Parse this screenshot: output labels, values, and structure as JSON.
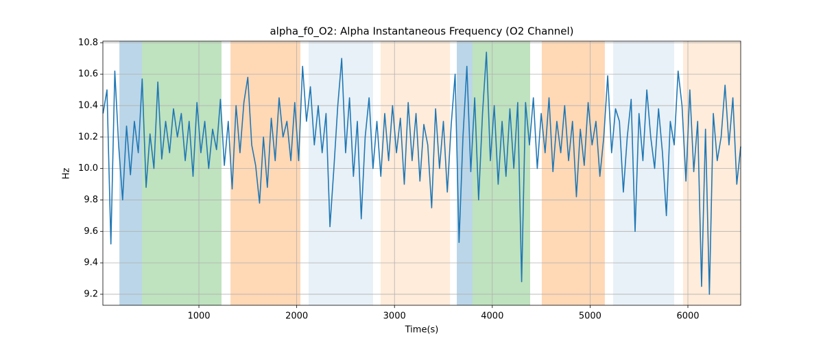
{
  "chart_data": {
    "type": "line",
    "title": "alpha_f0_O2: Alpha Instantaneous Frequency (O2 Channel)",
    "xlabel": "Time(s)",
    "ylabel": "Hz",
    "color": "#1f77b4",
    "xlim": [
      18,
      6540
    ],
    "ylim": [
      9.13,
      10.81
    ],
    "xticks": [
      1000,
      2000,
      3000,
      4000,
      5000,
      6000
    ],
    "yticks": [
      9.2,
      9.4,
      9.6,
      9.8,
      {
        "value": 10,
        "label": "10.0"
      },
      10.2,
      10.4,
      10.6,
      10.8
    ],
    "grid": true,
    "spans": [
      {
        "start": 187,
        "end": 418,
        "color": "#1f77b4",
        "alpha": 0.3
      },
      {
        "start": 418,
        "end": 1231,
        "color": "#2ca02c",
        "alpha": 0.3
      },
      {
        "start": 1323,
        "end": 2038,
        "color": "#ff7f0e",
        "alpha": 0.3
      },
      {
        "start": 2122,
        "end": 2781,
        "color": "#1f77b4",
        "alpha": 0.1
      },
      {
        "start": 2858,
        "end": 3567,
        "color": "#ff7f0e",
        "alpha": 0.15
      },
      {
        "start": 3637,
        "end": 3798,
        "color": "#1f77b4",
        "alpha": 0.3
      },
      {
        "start": 3798,
        "end": 4387,
        "color": "#2ca02c",
        "alpha": 0.3
      },
      {
        "start": 4506,
        "end": 5151,
        "color": "#ff7f0e",
        "alpha": 0.3
      },
      {
        "start": 5236,
        "end": 5860,
        "color": "#1f77b4",
        "alpha": 0.1
      },
      {
        "start": 5951,
        "end": 6540,
        "color": "#ff7f0e",
        "alpha": 0.15
      }
    ],
    "x": [
      20,
      60,
      100,
      140,
      180,
      220,
      260,
      300,
      340,
      380,
      420,
      460,
      500,
      540,
      580,
      620,
      660,
      700,
      740,
      780,
      820,
      860,
      900,
      940,
      980,
      1020,
      1060,
      1100,
      1140,
      1180,
      1220,
      1260,
      1300,
      1340,
      1380,
      1420,
      1460,
      1500,
      1540,
      1580,
      1620,
      1660,
      1700,
      1740,
      1780,
      1820,
      1860,
      1900,
      1940,
      1980,
      2020,
      2060,
      2100,
      2140,
      2180,
      2220,
      2260,
      2300,
      2340,
      2380,
      2420,
      2460,
      2500,
      2540,
      2580,
      2620,
      2660,
      2700,
      2740,
      2780,
      2820,
      2860,
      2900,
      2940,
      2980,
      3020,
      3060,
      3100,
      3140,
      3180,
      3220,
      3260,
      3300,
      3340,
      3380,
      3420,
      3460,
      3500,
      3540,
      3580,
      3620,
      3660,
      3700,
      3740,
      3780,
      3820,
      3860,
      3900,
      3940,
      3980,
      4020,
      4060,
      4100,
      4140,
      4180,
      4220,
      4260,
      4300,
      4340,
      4380,
      4420,
      4460,
      4500,
      4540,
      4580,
      4620,
      4660,
      4700,
      4740,
      4780,
      4820,
      4860,
      4900,
      4940,
      4980,
      5020,
      5060,
      5100,
      5140,
      5180,
      5220,
      5260,
      5300,
      5340,
      5380,
      5420,
      5460,
      5500,
      5540,
      5580,
      5620,
      5660,
      5700,
      5740,
      5780,
      5820,
      5860,
      5900,
      5940,
      5980,
      6020,
      6060,
      6100,
      6140,
      6180,
      6220,
      6260,
      6300,
      6340,
      6380,
      6420,
      6460,
      6500,
      6540
    ],
    "values": [
      10.35,
      10.5,
      9.52,
      10.62,
      10.14,
      9.8,
      10.27,
      9.96,
      10.3,
      10.1,
      10.57,
      9.88,
      10.22,
      10.0,
      10.55,
      10.06,
      10.3,
      10.1,
      10.38,
      10.2,
      10.35,
      10.05,
      10.3,
      9.95,
      10.42,
      10.1,
      10.3,
      10.0,
      10.25,
      10.12,
      10.44,
      10.02,
      10.3,
      9.87,
      10.4,
      10.1,
      10.42,
      10.58,
      10.15,
      10.02,
      9.78,
      10.2,
      9.88,
      10.32,
      10.05,
      10.45,
      10.2,
      10.3,
      10.05,
      10.42,
      10.05,
      10.65,
      10.3,
      10.52,
      10.15,
      10.4,
      10.1,
      10.35,
      9.63,
      10.0,
      10.4,
      10.7,
      10.1,
      10.45,
      9.95,
      10.3,
      9.68,
      10.2,
      10.45,
      10.0,
      10.3,
      9.95,
      10.35,
      10.05,
      10.4,
      10.1,
      10.32,
      9.9,
      10.42,
      10.05,
      10.35,
      9.92,
      10.28,
      10.15,
      9.75,
      10.38,
      10.0,
      10.3,
      9.85,
      10.28,
      10.6,
      9.53,
      10.2,
      10.65,
      9.98,
      10.45,
      9.8,
      10.35,
      10.74,
      10.05,
      10.4,
      9.9,
      10.3,
      9.95,
      10.38,
      10.0,
      10.42,
      9.28,
      10.42,
      10.15,
      10.45,
      10.0,
      10.35,
      10.1,
      10.45,
      9.98,
      10.3,
      10.1,
      10.4,
      10.05,
      10.3,
      9.82,
      10.25,
      10.02,
      10.42,
      10.15,
      10.3,
      9.95,
      10.2,
      10.59,
      10.1,
      10.38,
      10.3,
      9.85,
      10.2,
      10.44,
      9.6,
      10.35,
      10.05,
      10.5,
      10.2,
      10.0,
      10.38,
      10.1,
      9.7,
      10.3,
      10.15,
      10.62,
      10.4,
      9.92,
      10.5,
      9.98,
      10.3,
      9.25,
      10.25,
      9.2,
      10.35,
      10.05,
      10.2,
      10.53,
      10.15,
      10.45,
      9.9,
      10.14
    ]
  }
}
